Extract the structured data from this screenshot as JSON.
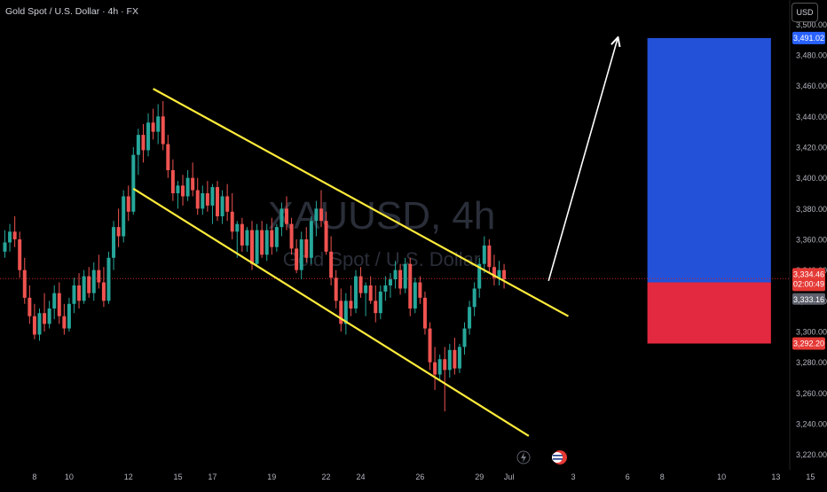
{
  "header": {
    "symbol_title": "Gold Spot / U.S. Dollar · 4h · FX",
    "currency": "USD"
  },
  "watermark": {
    "ticker": "XAUUSD, 4h",
    "name": "Gold Spot / U.S. Dollar"
  },
  "colors": {
    "background": "#000000",
    "up_candle": "#26a69a",
    "down_candle": "#ef5350",
    "channel": "#ffeb3b",
    "target_zone": "#2351d8",
    "stop_zone": "#e3293f",
    "arrow": "#ffffff",
    "price_line": "#c62828"
  },
  "price_labels": {
    "current_price": "3,334.46",
    "countdown": "02:00:49",
    "bid": "3,333.16",
    "target": "3,491.02",
    "stop": "3,292.20"
  },
  "chart_data": {
    "type": "candlestick",
    "ylim": [
      3210,
      3510
    ],
    "y_ticks": [
      3220,
      3240,
      3260,
      3280,
      3300,
      3320,
      3340,
      3360,
      3380,
      3400,
      3420,
      3440,
      3460,
      3480,
      3500
    ],
    "y_tick_labels": [
      "3,220.00",
      "3,240.00",
      "3,260.00",
      "3,280.00",
      "3,300.00",
      "3,320.00",
      "3,340.00",
      "3,360.00",
      "3,380.00",
      "3,400.00",
      "3,420.00",
      "3,440.00",
      "3,460.00",
      "3,480.00",
      "3,500.00"
    ],
    "x_ticks": [
      {
        "bar": 6,
        "label": "8"
      },
      {
        "bar": 13,
        "label": "10"
      },
      {
        "bar": 25,
        "label": "12"
      },
      {
        "bar": 35,
        "label": "15"
      },
      {
        "bar": 42,
        "label": "17"
      },
      {
        "bar": 54,
        "label": "19"
      },
      {
        "bar": 65,
        "label": "22"
      },
      {
        "bar": 72,
        "label": "24"
      },
      {
        "bar": 84,
        "label": "26"
      },
      {
        "bar": 96,
        "label": "29"
      },
      {
        "bar": 102,
        "label": "Jul"
      },
      {
        "bar": 115,
        "label": "3"
      },
      {
        "bar": 126,
        "label": "6"
      },
      {
        "bar": 133,
        "label": "8"
      },
      {
        "bar": 145,
        "label": "10"
      },
      {
        "bar": 156,
        "label": "13"
      },
      {
        "bar": 163,
        "label": "15"
      }
    ],
    "channel_upper": {
      "from": {
        "bar": 30,
        "price": 3458
      },
      "to": {
        "bar": 114,
        "price": 3310
      }
    },
    "channel_lower": {
      "from": {
        "bar": 26,
        "price": 3393
      },
      "to": {
        "bar": 106,
        "price": 3232
      }
    },
    "projection_arrow": {
      "from": {
        "bar": 110,
        "price": 3333
      },
      "to": {
        "bar": 124,
        "price": 3491
      }
    },
    "target_zone": {
      "bar_from": 130,
      "bar_to": 155,
      "price_from": 3491.02,
      "price_to": 3332
    },
    "stop_zone": {
      "bar_from": 130,
      "bar_to": 155,
      "price_from": 3332,
      "price_to": 3292.2
    },
    "current_price": 3334.46,
    "candles": [
      [
        3352,
        3366,
        3348,
        3358
      ],
      [
        3358,
        3370,
        3352,
        3365
      ],
      [
        3365,
        3375,
        3355,
        3360
      ],
      [
        3360,
        3365,
        3335,
        3340
      ],
      [
        3340,
        3348,
        3318,
        3322
      ],
      [
        3322,
        3330,
        3305,
        3310
      ],
      [
        3310,
        3318,
        3295,
        3298
      ],
      [
        3298,
        3315,
        3294,
        3312
      ],
      [
        3312,
        3325,
        3300,
        3305
      ],
      [
        3305,
        3320,
        3302,
        3315
      ],
      [
        3315,
        3330,
        3308,
        3325
      ],
      [
        3325,
        3332,
        3305,
        3310
      ],
      [
        3310,
        3318,
        3298,
        3302
      ],
      [
        3302,
        3322,
        3300,
        3318
      ],
      [
        3318,
        3335,
        3312,
        3330
      ],
      [
        3330,
        3338,
        3315,
        3320
      ],
      [
        3320,
        3340,
        3318,
        3336
      ],
      [
        3336,
        3342,
        3322,
        3325
      ],
      [
        3325,
        3345,
        3320,
        3340
      ],
      [
        3340,
        3350,
        3328,
        3332
      ],
      [
        3332,
        3342,
        3316,
        3320
      ],
      [
        3320,
        3352,
        3318,
        3348
      ],
      [
        3348,
        3372,
        3340,
        3368
      ],
      [
        3368,
        3380,
        3355,
        3362
      ],
      [
        3362,
        3392,
        3358,
        3388
      ],
      [
        3388,
        3395,
        3372,
        3378
      ],
      [
        3378,
        3420,
        3376,
        3415
      ],
      [
        3415,
        3432,
        3402,
        3428
      ],
      [
        3428,
        3435,
        3410,
        3418
      ],
      [
        3418,
        3442,
        3414,
        3436
      ],
      [
        3436,
        3445,
        3425,
        3430
      ],
      [
        3430,
        3448,
        3422,
        3440
      ],
      [
        3440,
        3450,
        3418,
        3422
      ],
      [
        3422,
        3428,
        3400,
        3405
      ],
      [
        3405,
        3412,
        3385,
        3390
      ],
      [
        3390,
        3398,
        3380,
        3395
      ],
      [
        3395,
        3402,
        3382,
        3388
      ],
      [
        3388,
        3405,
        3385,
        3400
      ],
      [
        3400,
        3410,
        3388,
        3392
      ],
      [
        3392,
        3400,
        3376,
        3380
      ],
      [
        3380,
        3395,
        3376,
        3390
      ],
      [
        3390,
        3398,
        3378,
        3382
      ],
      [
        3382,
        3396,
        3370,
        3394
      ],
      [
        3394,
        3398,
        3372,
        3375
      ],
      [
        3375,
        3392,
        3370,
        3388
      ],
      [
        3388,
        3396,
        3372,
        3378
      ],
      [
        3378,
        3390,
        3360,
        3365
      ],
      [
        3365,
        3372,
        3348,
        3370
      ],
      [
        3370,
        3374,
        3352,
        3356
      ],
      [
        3356,
        3368,
        3352,
        3366
      ],
      [
        3366,
        3372,
        3340,
        3344
      ],
      [
        3344,
        3370,
        3342,
        3366
      ],
      [
        3366,
        3372,
        3348,
        3350
      ],
      [
        3350,
        3370,
        3346,
        3366
      ],
      [
        3366,
        3374,
        3350,
        3355
      ],
      [
        3355,
        3370,
        3352,
        3368
      ],
      [
        3368,
        3384,
        3362,
        3380
      ],
      [
        3380,
        3388,
        3366,
        3370
      ],
      [
        3370,
        3374,
        3350,
        3354
      ],
      [
        3354,
        3360,
        3338,
        3340
      ],
      [
        3340,
        3365,
        3334,
        3360
      ],
      [
        3360,
        3368,
        3345,
        3348
      ],
      [
        3348,
        3375,
        3344,
        3372
      ],
      [
        3372,
        3385,
        3362,
        3380
      ],
      [
        3380,
        3392,
        3368,
        3372
      ],
      [
        3372,
        3378,
        3350,
        3352
      ],
      [
        3352,
        3362,
        3330,
        3335
      ],
      [
        3335,
        3340,
        3315,
        3320
      ],
      [
        3320,
        3328,
        3300,
        3305
      ],
      [
        3305,
        3325,
        3298,
        3320
      ],
      [
        3320,
        3330,
        3310,
        3315
      ],
      [
        3315,
        3340,
        3312,
        3336
      ],
      [
        3336,
        3342,
        3322,
        3325
      ],
      [
        3325,
        3332,
        3310,
        3330
      ],
      [
        3330,
        3336,
        3318,
        3320
      ],
      [
        3320,
        3330,
        3306,
        3312
      ],
      [
        3312,
        3330,
        3308,
        3326
      ],
      [
        3326,
        3336,
        3320,
        3330
      ],
      [
        3330,
        3338,
        3322,
        3334
      ],
      [
        3334,
        3346,
        3328,
        3340
      ],
      [
        3340,
        3344,
        3324,
        3328
      ],
      [
        3328,
        3348,
        3325,
        3344
      ],
      [
        3344,
        3348,
        3310,
        3315
      ],
      [
        3315,
        3335,
        3312,
        3332
      ],
      [
        3332,
        3336,
        3318,
        3322
      ],
      [
        3322,
        3326,
        3298,
        3302
      ],
      [
        3302,
        3306,
        3275,
        3280
      ],
      [
        3280,
        3290,
        3262,
        3272
      ],
      [
        3272,
        3285,
        3268,
        3282
      ],
      [
        3282,
        3290,
        3248,
        3275
      ],
      [
        3275,
        3292,
        3270,
        3288
      ],
      [
        3288,
        3296,
        3272,
        3276
      ],
      [
        3276,
        3292,
        3273,
        3290
      ],
      [
        3290,
        3306,
        3285,
        3302
      ],
      [
        3302,
        3320,
        3298,
        3316
      ],
      [
        3316,
        3332,
        3310,
        3328
      ],
      [
        3328,
        3348,
        3322,
        3344
      ],
      [
        3344,
        3362,
        3338,
        3356
      ],
      [
        3356,
        3360,
        3338,
        3342
      ],
      [
        3342,
        3350,
        3330,
        3335
      ],
      [
        3335,
        3346,
        3330,
        3340
      ],
      [
        3340,
        3344,
        3328,
        3334
      ]
    ]
  }
}
